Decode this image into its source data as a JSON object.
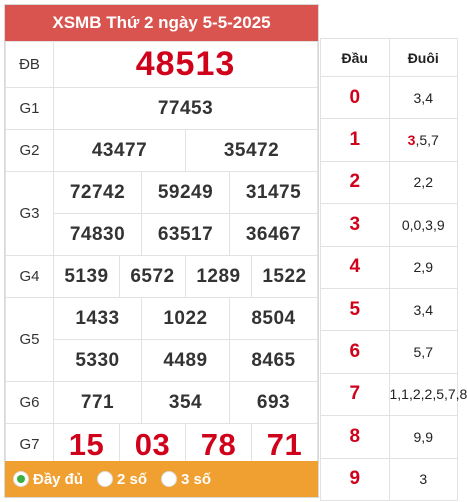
{
  "header": {
    "title": "XSMB Thứ 2 ngày 5-5-2025"
  },
  "prizes": {
    "db": {
      "label": "ĐB",
      "value": "48513"
    },
    "g1": {
      "label": "G1",
      "values": [
        "77453"
      ]
    },
    "g2": {
      "label": "G2",
      "values": [
        "43477",
        "35472"
      ]
    },
    "g3": {
      "label": "G3",
      "values": [
        "72742",
        "59249",
        "31475",
        "74830",
        "63517",
        "36467"
      ]
    },
    "g4": {
      "label": "G4",
      "values": [
        "5139",
        "6572",
        "1289",
        "1522"
      ]
    },
    "g5": {
      "label": "G5",
      "values": [
        "1433",
        "1022",
        "8504",
        "5330",
        "4489",
        "8465"
      ]
    },
    "g6": {
      "label": "G6",
      "values": [
        "771",
        "354",
        "693"
      ]
    },
    "g7": {
      "label": "G7",
      "values": [
        "15",
        "03",
        "78",
        "71"
      ]
    }
  },
  "footer": {
    "options": [
      {
        "label": "Đầy đủ",
        "selected": true
      },
      {
        "label": "2 số",
        "selected": false
      },
      {
        "label": "3 số",
        "selected": false
      }
    ]
  },
  "loto": {
    "head_label": "Đầu",
    "tail_label": "Đuôi",
    "rows": [
      {
        "head": "0",
        "tail": "3,4"
      },
      {
        "head": "1",
        "tail_highlight": "3",
        "tail_rest": ",5,7"
      },
      {
        "head": "2",
        "tail": "2,2"
      },
      {
        "head": "3",
        "tail": "0,0,3,9"
      },
      {
        "head": "4",
        "tail": "2,9"
      },
      {
        "head": "5",
        "tail": "3,4"
      },
      {
        "head": "6",
        "tail": "5,7"
      },
      {
        "head": "7",
        "tail": "1,1,2,2,5,7,8"
      },
      {
        "head": "8",
        "tail": "9,9"
      },
      {
        "head": "9",
        "tail": "3"
      }
    ]
  },
  "colors": {
    "header_bg": "#d9534f",
    "footer_bg": "#f0a030",
    "accent_red": "#d0021b",
    "radio_on": "#3cb043"
  }
}
